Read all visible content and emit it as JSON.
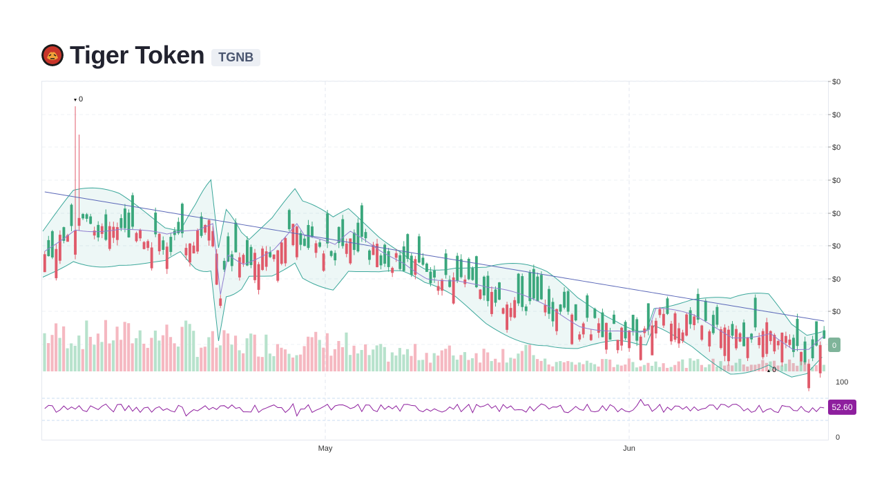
{
  "header": {
    "name": "Tiger Token",
    "symbol": "TGNB",
    "logo_icon": "tiger-logo-icon"
  },
  "chart_data": {
    "type": "candlestick",
    "title": "",
    "price_axis": {
      "tick_labels": [
        "$0",
        "$0",
        "$0",
        "$0",
        "$0",
        "$0",
        "$0",
        "$0",
        "$0"
      ]
    },
    "x_axis": {
      "tick_labels": [
        "May",
        "Jun"
      ]
    },
    "markers": {
      "high": "0",
      "low": "0"
    },
    "last_price_label": "0",
    "rsi": {
      "value": 52.6,
      "value_label": "52.60",
      "axis_labels": [
        "100",
        "0"
      ],
      "upper_band": 70,
      "lower_band": 30
    },
    "colors": {
      "up": "#3aa77c",
      "down": "#e05a6a",
      "band": "#3aa79a",
      "ma_long": "#5a67b8",
      "ma_short": "#8f7ccf",
      "rsi": "#8e1f9e"
    }
  }
}
